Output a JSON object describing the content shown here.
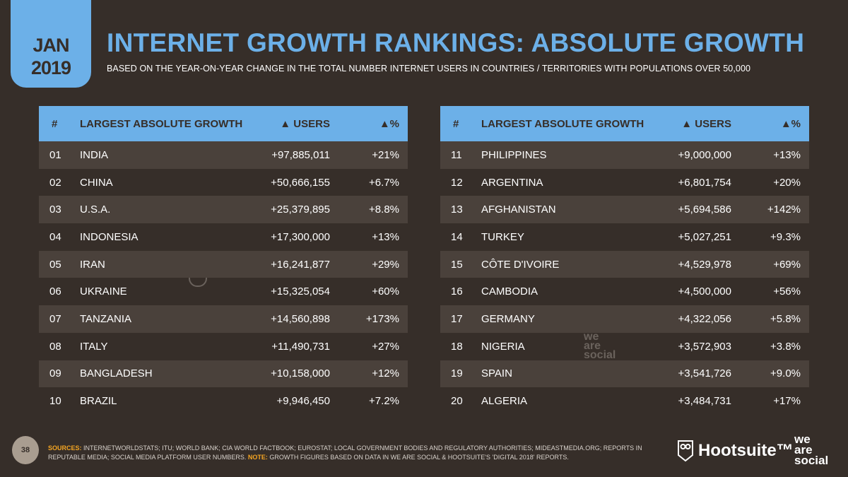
{
  "date": {
    "month": "JAN",
    "year": "2019"
  },
  "title": "INTERNET GROWTH RANKINGS: ABSOLUTE GROWTH",
  "subtitle": "BASED ON THE YEAR-ON-YEAR CHANGE IN THE TOTAL NUMBER INTERNET USERS IN COUNTRIES / TERRITORIES WITH POPULATIONS OVER 50,000",
  "headers": {
    "rank": "#",
    "country": "LARGEST ABSOLUTE GROWTH",
    "users": "▲ USERS",
    "pct": "▲%"
  },
  "left": [
    {
      "rank": "01",
      "country": "INDIA",
      "users": "+97,885,011",
      "pct": "+21%"
    },
    {
      "rank": "02",
      "country": "CHINA",
      "users": "+50,666,155",
      "pct": "+6.7%"
    },
    {
      "rank": "03",
      "country": "U.S.A.",
      "users": "+25,379,895",
      "pct": "+8.8%"
    },
    {
      "rank": "04",
      "country": "INDONESIA",
      "users": "+17,300,000",
      "pct": "+13%"
    },
    {
      "rank": "05",
      "country": "IRAN",
      "users": "+16,241,877",
      "pct": "+29%"
    },
    {
      "rank": "06",
      "country": "UKRAINE",
      "users": "+15,325,054",
      "pct": "+60%"
    },
    {
      "rank": "07",
      "country": "TANZANIA",
      "users": "+14,560,898",
      "pct": "+173%"
    },
    {
      "rank": "08",
      "country": "ITALY",
      "users": "+11,490,731",
      "pct": "+27%"
    },
    {
      "rank": "09",
      "country": "BANGLADESH",
      "users": "+10,158,000",
      "pct": "+12%"
    },
    {
      "rank": "10",
      "country": "BRAZIL",
      "users": "+9,946,450",
      "pct": "+7.2%"
    }
  ],
  "right": [
    {
      "rank": "11",
      "country": "PHILIPPINES",
      "users": "+9,000,000",
      "pct": "+13%"
    },
    {
      "rank": "12",
      "country": "ARGENTINA",
      "users": "+6,801,754",
      "pct": "+20%"
    },
    {
      "rank": "13",
      "country": "AFGHANISTAN",
      "users": "+5,694,586",
      "pct": "+142%"
    },
    {
      "rank": "14",
      "country": "TURKEY",
      "users": "+5,027,251",
      "pct": "+9.3%"
    },
    {
      "rank": "15",
      "country": "CÔTE D'IVOIRE",
      "users": "+4,529,978",
      "pct": "+69%"
    },
    {
      "rank": "16",
      "country": "CAMBODIA",
      "users": "+4,500,000",
      "pct": "+56%"
    },
    {
      "rank": "17",
      "country": "GERMANY",
      "users": "+4,322,056",
      "pct": "+5.8%"
    },
    {
      "rank": "18",
      "country": "NIGERIA",
      "users": "+3,572,903",
      "pct": "+3.8%"
    },
    {
      "rank": "19",
      "country": "SPAIN",
      "users": "+3,541,726",
      "pct": "+9.0%"
    },
    {
      "rank": "20",
      "country": "ALGERIA",
      "users": "+3,484,731",
      "pct": "+17%"
    }
  ],
  "footer": {
    "page": "38",
    "sources_label": "SOURCES:",
    "sources": "INTERNETWORLDSTATS; ITU; WORLD BANK; CIA WORLD FACTBOOK; EUROSTAT; LOCAL GOVERNMENT BODIES AND REGULATORY AUTHORITIES; MIDEASTMEDIA.ORG; REPORTS IN REPUTABLE MEDIA; SOCIAL MEDIA PLATFORM USER NUMBERS.",
    "note_label": "NOTE:",
    "note": "GROWTH FIGURES BASED ON DATA IN WE ARE SOCIAL & HOOTSUITE'S 'DIGITAL 2018' REPORTS."
  },
  "logos": {
    "hootsuite": "Hootsuite™",
    "wearesocial": "we are social"
  },
  "colors": {
    "accent": "#6cb0e8",
    "background": "#362e29",
    "highlight": "#f5a623"
  }
}
